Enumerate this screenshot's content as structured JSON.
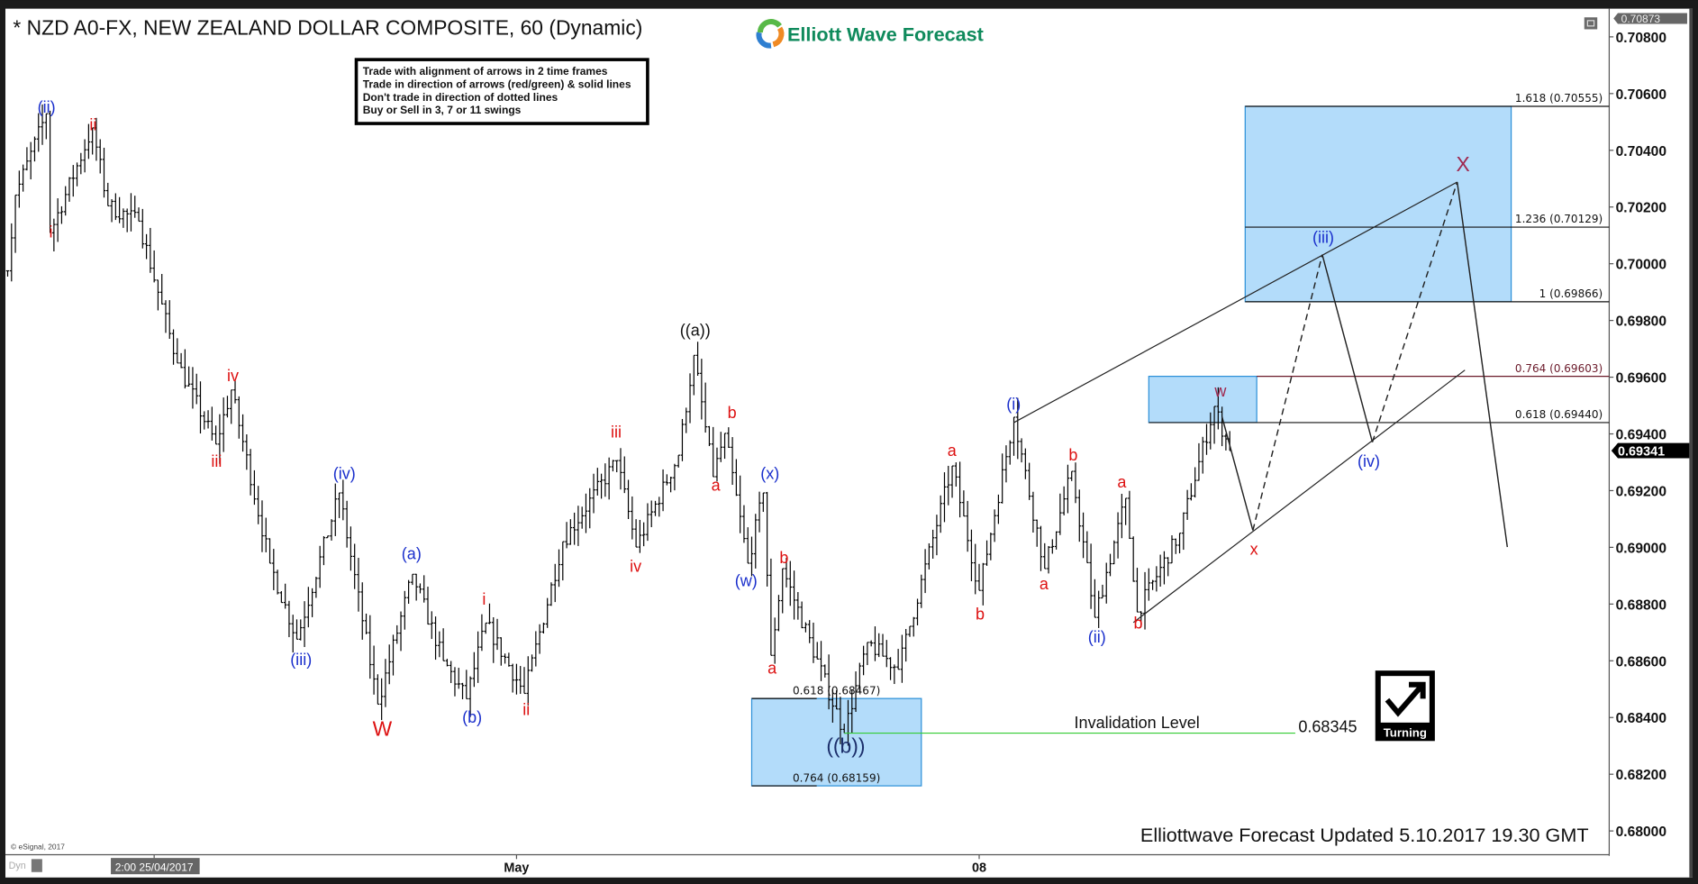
{
  "header": {
    "title": "* NZD A0-FX, NEW ZEALAND DOLLAR COMPOSITE, 60 (Dynamic)",
    "logo_text": "Elliott Wave Forecast"
  },
  "rules_box": {
    "lines": [
      "Trade with alignment of arrows in 2 time frames",
      "Trade in direction of arrows (red/green) & solid lines",
      "Don't trade in direction of dotted lines",
      "Buy or Sell in 3, 7 or 11 swings"
    ]
  },
  "footer": {
    "updated": "Elliottwave Forecast Updated 5.10.2017 19.30 GMT",
    "copyright": "© eSignal, 2017",
    "dyn": "Dyn"
  },
  "invalidation": {
    "label": "Invalidation Level",
    "value": "0.68345",
    "price": 0.68345,
    "color": "#33cc33"
  },
  "turning_badge": {
    "label": "Turning",
    "icon": "check-arrow-up-right-icon"
  },
  "price_tags": {
    "top": "0.70873",
    "current": "0.69341",
    "current_price": 0.69341
  },
  "colors": {
    "box": "#b3dcfa",
    "box_border": "#2a8fd8",
    "wave_red": "#dd1111",
    "wave_blue": "#1a2fcc",
    "wave_black": "#111111",
    "wave_w": "#a0284f",
    "logo_green": "#0f8a5c"
  },
  "chart_data": {
    "type": "ohlc",
    "symbol": "NZD A0-FX",
    "interval": "60",
    "ylim": [
      0.6792,
      0.7092
    ],
    "y_ticks": [
      "0.70800",
      "0.70600",
      "0.70400",
      "0.70200",
      "0.70000",
      "0.69800",
      "0.69600",
      "0.69400",
      "0.69200",
      "0.69000",
      "0.68800",
      "0.68600",
      "0.68400",
      "0.68200",
      "0.68000"
    ],
    "x_ticks": [
      {
        "label": "2:00 25/04/2017",
        "time": "2017-04-25 02:00"
      },
      {
        "label": "May",
        "time": "2017-05-01 00:00"
      },
      {
        "label": "08",
        "time": "2017-05-08 00:00"
      }
    ],
    "price_path": [
      [
        "2017-04-21 12:00",
        0.69975
      ],
      [
        "2017-04-21 14:00",
        0.70242
      ],
      [
        "2017-04-21 22:00",
        0.70529
      ],
      [
        "2017-04-21 23:00",
        0.70109
      ],
      [
        "2017-04-24 10:00",
        0.70479
      ],
      [
        "2017-04-24 14:00",
        0.70204
      ],
      [
        "2017-04-24 22:00",
        0.7015
      ],
      [
        "2017-04-25 08:00",
        0.6965
      ],
      [
        "2017-04-25 18:00",
        0.69364
      ],
      [
        "2017-04-25 22:00",
        0.69555
      ],
      [
        "2017-04-26 08:00",
        0.68944
      ],
      [
        "2017-04-26 15:00",
        0.68676
      ],
      [
        "2017-04-27 02:00",
        0.69192
      ],
      [
        "2017-04-27 12:00",
        0.68447
      ],
      [
        "2017-04-27 21:00",
        0.68905
      ],
      [
        "2017-04-28 05:00",
        0.686
      ],
      [
        "2017-04-28 11:00",
        0.68466
      ],
      [
        "2017-04-28 16:00",
        0.68733
      ],
      [
        "2017-05-01 02:00",
        0.68485
      ],
      [
        "2017-05-01 12:00",
        0.6902
      ],
      [
        "2017-05-02 02:00",
        0.69306
      ],
      [
        "2017-05-02 07:00",
        0.69001
      ],
      [
        "2017-05-02 18:00",
        0.69325
      ],
      [
        "2017-05-02 22:00",
        0.69677
      ],
      [
        "2017-05-03 03:00",
        0.69249
      ],
      [
        "2017-05-03 06:00",
        0.69402
      ],
      [
        "2017-05-03 12:00",
        0.68944
      ],
      [
        "2017-05-03 16:00",
        0.69192
      ],
      [
        "2017-05-03 18:00",
        0.68619
      ],
      [
        "2017-05-03 21:00",
        0.68925
      ],
      [
        "2017-05-04 13:00",
        0.68345
      ],
      [
        "2017-05-04 19:00",
        0.68665
      ],
      [
        "2017-05-05 03:00",
        0.6857
      ],
      [
        "2017-05-05 17:00",
        0.69287
      ],
      [
        "2017-05-08 00:00",
        0.68848
      ],
      [
        "2017-05-08 09:00",
        0.69459
      ],
      [
        "2017-05-08 17:00",
        0.68925
      ],
      [
        "2017-05-09 00:00",
        0.69268
      ],
      [
        "2017-05-09 06:00",
        0.68753
      ],
      [
        "2017-05-09 14:00",
        0.69173
      ],
      [
        "2017-05-09 17:00",
        0.68772
      ],
      [
        "2017-05-10 04:00",
        0.6905
      ],
      [
        "2017-05-10 13:00",
        0.69497
      ],
      [
        "2017-05-10 17:00",
        0.69341
      ]
    ],
    "forecast_path": [
      {
        "time": "2017-05-10 15:00",
        "price": 0.6946,
        "style": "solid"
      },
      {
        "time": "2017-05-10 23:00",
        "price": 0.6906,
        "style": "dashed"
      },
      {
        "time": "2017-05-11 17:00",
        "price": 0.70032,
        "style": "solid"
      },
      {
        "time": "2017-05-12 06:00",
        "price": 0.69371,
        "style": "dashed"
      },
      {
        "time": "2017-05-15 04:00",
        "price": 0.70288,
        "style": "solid"
      },
      {
        "time": "2017-05-15 17:00",
        "price": 0.69001,
        "style": "end"
      }
    ],
    "fib_levels": [
      {
        "label": "1.618 (0.70555)",
        "price": 0.70555,
        "color": "#111111"
      },
      {
        "label": "1.236 (0.70129)",
        "price": 0.70129,
        "color": "#111111"
      },
      {
        "label": "1 (0.69866)",
        "price": 0.69866,
        "color": "#111111"
      },
      {
        "label": "0.764 (0.69603)",
        "price": 0.69603,
        "color": "#6b1a2a"
      },
      {
        "label": "0.618 (0.69440)",
        "price": 0.6944,
        "color": "#111111"
      }
    ],
    "target_boxes": [
      {
        "top": 0.70555,
        "bottom": 0.69866
      },
      {
        "top": 0.69603,
        "bottom": 0.6944
      },
      {
        "top": 0.68467,
        "bottom": 0.68159,
        "top_label": "0.618 (0.68467)",
        "bottom_label": "0.764 (0.68159)"
      }
    ],
    "wave_labels": [
      {
        "text": "(ii)",
        "color": "blue"
      },
      {
        "text": "i",
        "color": "red"
      },
      {
        "text": "ii",
        "color": "red"
      },
      {
        "text": "iv",
        "color": "red"
      },
      {
        "text": "iii",
        "color": "red"
      },
      {
        "text": "(iv)",
        "color": "blue"
      },
      {
        "text": "(iii)",
        "color": "blue"
      },
      {
        "text": "W",
        "color": "red"
      },
      {
        "text": "(a)",
        "color": "blue"
      },
      {
        "text": "(b)",
        "color": "blue"
      },
      {
        "text": "i",
        "color": "red"
      },
      {
        "text": "ii",
        "color": "red"
      },
      {
        "text": "iii",
        "color": "red"
      },
      {
        "text": "iv",
        "color": "red"
      },
      {
        "text": "((a))",
        "color": "black"
      },
      {
        "text": "b",
        "color": "red"
      },
      {
        "text": "a",
        "color": "red"
      },
      {
        "text": "(x)",
        "color": "blue"
      },
      {
        "text": "(w)",
        "color": "blue"
      },
      {
        "text": "b",
        "color": "red"
      },
      {
        "text": "a",
        "color": "red"
      },
      {
        "text": "((b))",
        "color": "navy"
      },
      {
        "text": "a",
        "color": "red"
      },
      {
        "text": "b",
        "color": "red"
      },
      {
        "text": "(i)",
        "color": "blue"
      },
      {
        "text": "b",
        "color": "red"
      },
      {
        "text": "a",
        "color": "red"
      },
      {
        "text": "a",
        "color": "red"
      },
      {
        "text": "(ii)",
        "color": "blue"
      },
      {
        "text": "b",
        "color": "red"
      },
      {
        "text": "w",
        "color": "w"
      },
      {
        "text": "x",
        "color": "red"
      },
      {
        "text": "(iii)",
        "color": "blue"
      },
      {
        "text": "(iv)",
        "color": "blue"
      },
      {
        "text": "X",
        "color": "w"
      }
    ]
  }
}
